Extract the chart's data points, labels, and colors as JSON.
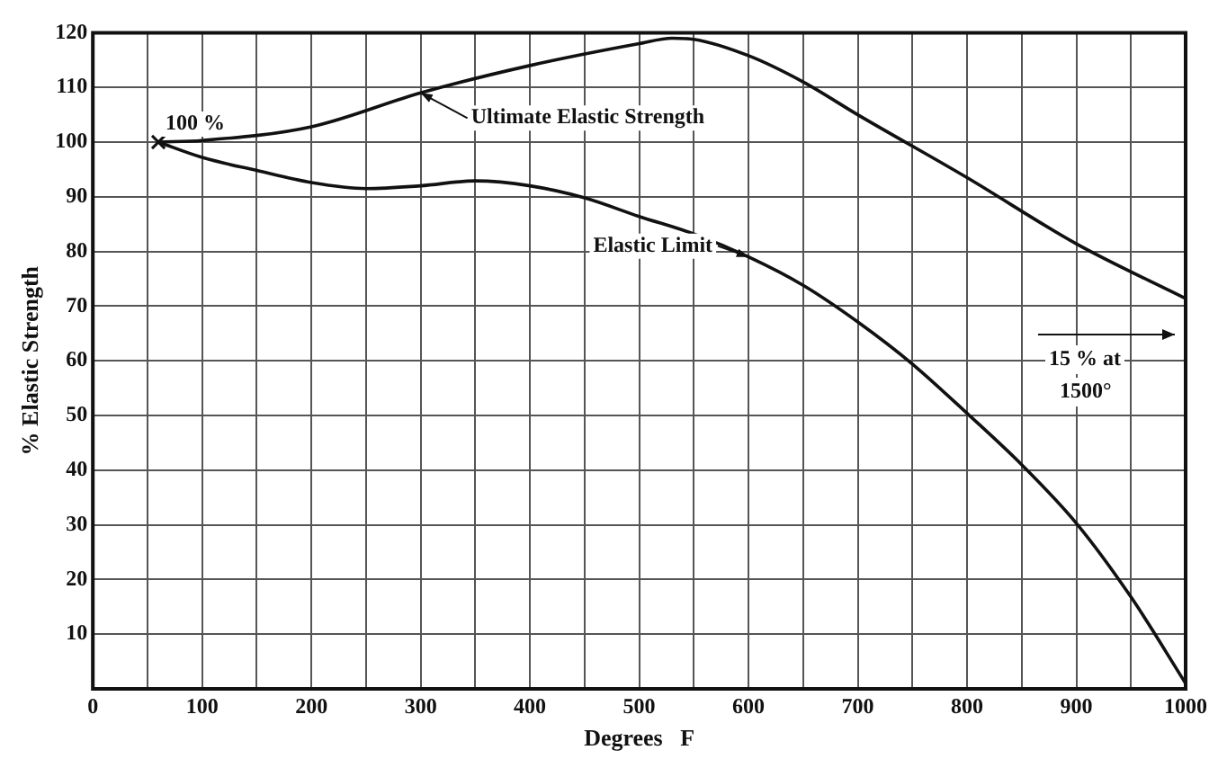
{
  "chart_data": {
    "type": "line",
    "xlabel": "Degrees   F",
    "ylabel": "% Elastic Strength",
    "xlim": [
      0,
      1000
    ],
    "ylim": [
      0,
      120
    ],
    "xticks": [
      0,
      {
        "value": 50,
        "label": null
      },
      100,
      {
        "value": 150,
        "label": null
      },
      200,
      {
        "value": 250,
        "label": null
      },
      300,
      {
        "value": 350,
        "label": null
      },
      400,
      {
        "value": 450,
        "label": null
      },
      500,
      {
        "value": 550,
        "label": null
      },
      600,
      {
        "value": 650,
        "label": null
      },
      700,
      {
        "value": 750,
        "label": null
      },
      800,
      {
        "value": 850,
        "label": null
      },
      900,
      {
        "value": 950,
        "label": null
      },
      1000
    ],
    "yticks": [
      {
        "value": 0,
        "label": null
      },
      10,
      20,
      30,
      40,
      50,
      60,
      70,
      80,
      90,
      100,
      110,
      120
    ],
    "grid": true,
    "legend": false,
    "marker": "none",
    "line_style": "solid",
    "series": [
      {
        "color": "#111111",
        "x": [
          60,
          100,
          200,
          300,
          400,
          500,
          530,
          550,
          600,
          650,
          700,
          800,
          900,
          1000
        ],
        "values": [
          100,
          100.3,
          102.8,
          109,
          114,
          118,
          119,
          118.8,
          115.8,
          111,
          105,
          93.5,
          81.4,
          71.4
        ]
      },
      {
        "color": "#111111",
        "x": [
          60,
          100,
          150,
          200,
          250,
          300,
          350,
          400,
          450,
          500,
          550,
          600,
          650,
          700,
          750,
          800,
          850,
          900,
          950,
          1000
        ],
        "values": [
          100,
          97.2,
          94.8,
          92.6,
          91.5,
          92,
          92.9,
          92,
          89.8,
          86.4,
          83.2,
          79,
          73.8,
          67.1,
          59.4,
          50.4,
          41,
          30.3,
          16.8,
          1
        ]
      },
      {
        "type": "scatter",
        "marker": "cross",
        "color": "#111111",
        "x": [
          60
        ],
        "values": [
          100
        ]
      }
    ],
    "annotations": [
      {
        "text": "100 %",
        "x": 60,
        "y": 100
      },
      {
        "text": "Ultimate Elastic Strength",
        "x": 300,
        "y": 109
      },
      {
        "text": "Elastic Limit",
        "x": 600,
        "y": 79
      },
      "15 % at 1500°"
    ]
  }
}
